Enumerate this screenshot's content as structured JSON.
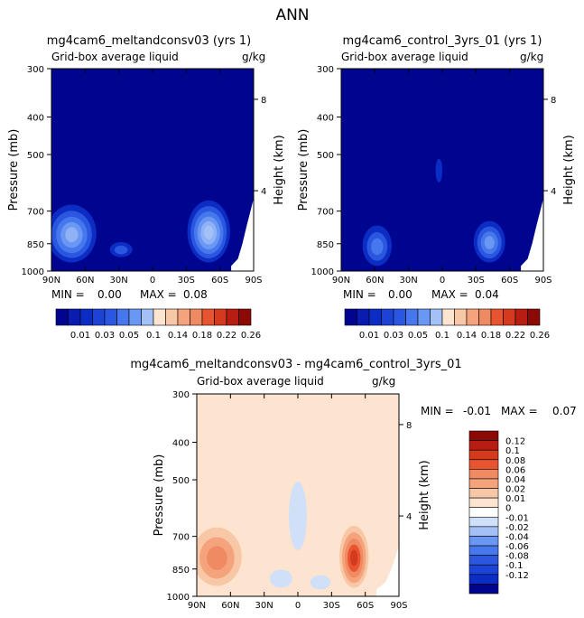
{
  "main_title": "ANN",
  "chart_data": [
    {
      "type": "contour",
      "title": "mg4cam6_meltandconsv03 (yrs 1)",
      "subtitle_left": "Grid-box average liquid",
      "subtitle_right": "g/kg",
      "ylabel": "Pressure (mb)",
      "ylabel_right": "Height (km)",
      "x_ticks": [
        "90N",
        "60N",
        "30N",
        "0",
        "30S",
        "60S",
        "90S"
      ],
      "y_ticks": [
        "300",
        "400",
        "500",
        "700",
        "850",
        "1000"
      ],
      "y_right_ticks": [
        "8",
        "4"
      ],
      "stats": {
        "min_label": "MIN =",
        "min": "0.00",
        "max_label": "MAX =",
        "max": "0.08"
      },
      "xlim": [
        90,
        -90
      ],
      "ylim": [
        1000,
        300
      ],
      "background_color": "#00058f",
      "features": [
        {
          "lat": 72,
          "p": 800,
          "dlat": 22,
          "dp": 150,
          "levels": [
            "#0c2dc4",
            "#2b57e0",
            "#4677ec",
            "#6a97f3",
            "#8fb2f6"
          ]
        },
        {
          "lat": -50,
          "p": 790,
          "dlat": 19,
          "dp": 160,
          "levels": [
            "#0c2dc4",
            "#2b57e0",
            "#4677ec",
            "#6a97f3",
            "#8fb2f6",
            "#a3c1f7"
          ]
        },
        {
          "lat": 28,
          "p": 880,
          "dlat": 10,
          "dp": 40,
          "levels": [
            "#0c2dc4",
            "#2b57e0"
          ]
        }
      ]
    },
    {
      "type": "contour",
      "title": "mg4cam6_control_3yrs_01 (yrs 1)",
      "subtitle_left": "Grid-box average liquid",
      "subtitle_right": "g/kg",
      "ylabel": "Pressure (mb)",
      "ylabel_right": "Height (km)",
      "x_ticks": [
        "90N",
        "60N",
        "30N",
        "0",
        "30S",
        "60S",
        "90S"
      ],
      "y_ticks": [
        "300",
        "400",
        "500",
        "700",
        "850",
        "1000"
      ],
      "y_right_ticks": [
        "8",
        "4"
      ],
      "stats": {
        "min_label": "MIN =",
        "min": "0.00",
        "max_label": "MAX =",
        "max": "0.04"
      },
      "xlim": [
        90,
        -90
      ],
      "ylim": [
        1000,
        300
      ],
      "background_color": "#00058f",
      "features": [
        {
          "lat": 58,
          "p": 860,
          "dlat": 13,
          "dp": 110,
          "levels": [
            "#0c2dc4",
            "#2b57e0",
            "#4677ec"
          ]
        },
        {
          "lat": -42,
          "p": 840,
          "dlat": 14,
          "dp": 110,
          "levels": [
            "#0c2dc4",
            "#2b57e0",
            "#4677ec",
            "#6a97f3"
          ]
        },
        {
          "lat": 3,
          "p": 550,
          "dlat": 3,
          "dp": 40,
          "levels": [
            "#0c2dc4"
          ]
        }
      ]
    },
    {
      "type": "contour",
      "title": "mg4cam6_meltandconsv03 - mg4cam6_control_3yrs_01",
      "subtitle_left": "Grid-box average liquid",
      "subtitle_right": "g/kg",
      "ylabel": "Pressure (mb)",
      "ylabel_right": "Height (km)",
      "x_ticks": [
        "90N",
        "60N",
        "30N",
        "0",
        "30S",
        "60S",
        "90S"
      ],
      "y_ticks": [
        "300",
        "400",
        "500",
        "700",
        "850",
        "1000"
      ],
      "y_right_ticks": [
        "8",
        "4"
      ],
      "stats": {
        "min_label": "MIN =",
        "min": "-0.01",
        "max_label": "MAX =",
        "max": "0.07"
      },
      "xlim": [
        90,
        -90
      ],
      "ylim": [
        1000,
        300
      ],
      "background_color": "#fde4d1",
      "features": [
        {
          "lat": 72,
          "p": 790,
          "dlat": 22,
          "dp": 150,
          "levels": [
            "#f8c7a6",
            "#f4a37c",
            "#f08a63"
          ]
        },
        {
          "lat": -50,
          "p": 790,
          "dlat": 13,
          "dp": 160,
          "levels": [
            "#f8c7a6",
            "#f4a37c",
            "#f08a63",
            "#e8542f",
            "#d43a1e"
          ]
        },
        {
          "lat": 0,
          "p": 620,
          "dlat": 8,
          "dp": 140,
          "levels": [
            "#cfe0f8"
          ]
        },
        {
          "lat": 15,
          "p": 900,
          "dlat": 10,
          "dp": 50,
          "levels": [
            "#cfe0f8"
          ]
        },
        {
          "lat": -20,
          "p": 920,
          "dlat": 9,
          "dp": 40,
          "levels": [
            "#cfe0f8"
          ]
        }
      ]
    }
  ],
  "colorbar_top": {
    "colors": [
      "#00058f",
      "#0a1bb0",
      "#0c2dc4",
      "#1b44d6",
      "#2b57e0",
      "#4677ec",
      "#6a97f3",
      "#a3c1f7",
      "#fde4d1",
      "#f8c7a6",
      "#f4a37c",
      "#f08a63",
      "#e8542f",
      "#d43a1e",
      "#b81d12",
      "#8b0a05"
    ],
    "labels": [
      "0.01",
      "0.03",
      "0.05",
      "0.1",
      "0.14",
      "0.18",
      "0.22",
      "0.26"
    ]
  },
  "colorbar_right": {
    "colors": [
      "#8b0a05",
      "#b81d12",
      "#d43a1e",
      "#e8542f",
      "#f08a63",
      "#f4a37c",
      "#f8c7a6",
      "#fde4d1",
      "#ffffff",
      "#cfe0f8",
      "#a3c1f7",
      "#6a97f3",
      "#4677ec",
      "#2b57e0",
      "#1b44d6",
      "#0c2dc4",
      "#00058f"
    ],
    "labels": [
      "0.12",
      "0.1",
      "0.08",
      "0.06",
      "0.04",
      "0.02",
      "0.01",
      "0",
      "-0.01",
      "-0.02",
      "-0.04",
      "-0.06",
      "-0.08",
      "-0.1",
      "-0.12"
    ]
  }
}
